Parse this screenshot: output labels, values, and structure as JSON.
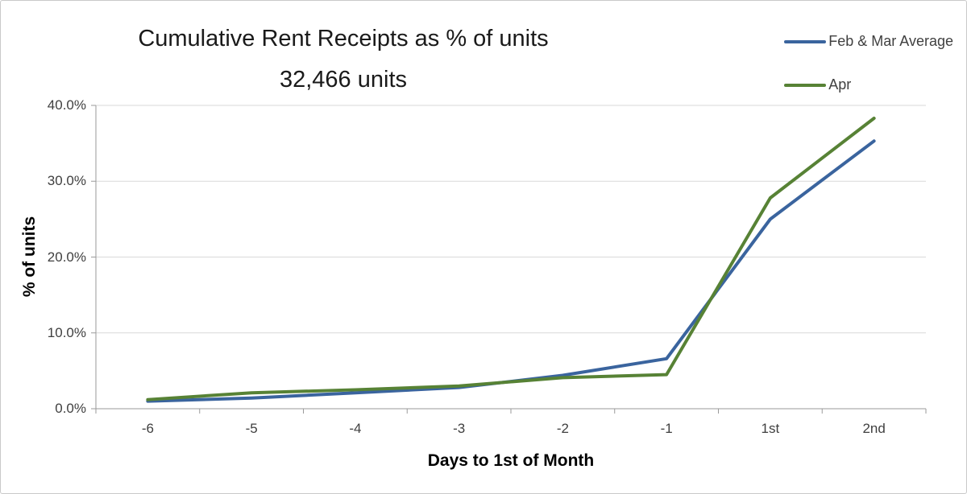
{
  "page": {
    "background": "#ffffff",
    "border_color": "#c9c9c9"
  },
  "chart_data": {
    "type": "line",
    "title": "Cumulative Rent Receipts as % of units",
    "subtitle": "32,466 units",
    "xlabel": "Days to 1st of Month",
    "ylabel": "% of units",
    "categories": [
      "-6",
      "-5",
      "-4",
      "-3",
      "-2",
      "-1",
      "1st",
      "2nd"
    ],
    "series": [
      {
        "name": "Feb & Mar Average",
        "color": "#3A649E",
        "values": [
          1.0,
          1.4,
          2.1,
          2.8,
          4.4,
          6.6,
          25.0,
          35.3
        ]
      },
      {
        "name": "Apr",
        "color": "#578235",
        "values": [
          1.2,
          2.1,
          2.5,
          3.0,
          4.1,
          4.5,
          27.8,
          38.3
        ]
      }
    ],
    "ylim": [
      0,
      40
    ],
    "yticks": [
      0,
      10,
      20,
      30,
      40
    ],
    "ytick_labels": [
      "0.0%",
      "10.0%",
      "20.0%",
      "30.0%",
      "40.0%"
    ],
    "grid": true,
    "legend_position": "top-right"
  },
  "style": {
    "grid_color": "#d9d9d9",
    "axis_color": "#9a9a9a",
    "tick_text_color": "#3f3f3f",
    "legend_text_color": "#404040",
    "title_color": "#1a1a1a"
  }
}
